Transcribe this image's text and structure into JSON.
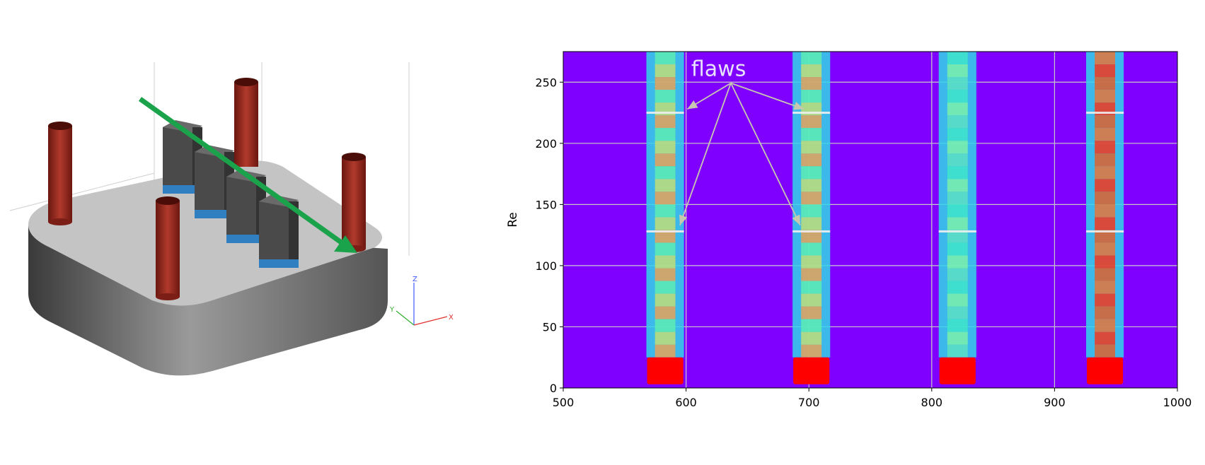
{
  "scene": {
    "axes_triad": {
      "z": "Z",
      "y": "Y",
      "x": "X"
    },
    "colors": {
      "pillar": "#9b2a22",
      "plate_top": "#c4c4c4",
      "plate_side": "#6e6e6e",
      "arrow": "#1aa34a",
      "block": "#4a4a4a",
      "block_base": "#2f7fc1"
    }
  },
  "chart_data": {
    "type": "heatmap",
    "ylabel": "Re",
    "xlabel": "",
    "title": "",
    "xlim": [
      500,
      1000
    ],
    "ylim": [
      0,
      275
    ],
    "xticks": [
      "500",
      "600",
      "700",
      "800",
      "900",
      "1000"
    ],
    "yticks": [
      "0",
      "50",
      "100",
      "150",
      "200",
      "250"
    ],
    "grid": true,
    "colormap": "rainbow",
    "background_color": "#7f00ff",
    "bands": [
      {
        "x_center": 583,
        "width": 26,
        "intensity": "medium",
        "gap_at": [
          128,
          225
        ],
        "base_top": 25
      },
      {
        "x_center": 702,
        "width": 26,
        "intensity": "medium",
        "gap_at": [
          128,
          225
        ],
        "base_top": 25
      },
      {
        "x_center": 821,
        "width": 26,
        "intensity": "low",
        "gap_at": [
          128
        ],
        "base_top": 25
      },
      {
        "x_center": 941,
        "width": 26,
        "intensity": "high",
        "gap_at": [
          128,
          225
        ],
        "base_top": 25
      }
    ],
    "annotation": {
      "text": "flaws",
      "text_pos": [
        633,
        255
      ],
      "targets": [
        [
          601,
          228
        ],
        [
          595,
          133
        ],
        [
          696,
          228
        ],
        [
          693,
          133
        ]
      ]
    }
  }
}
